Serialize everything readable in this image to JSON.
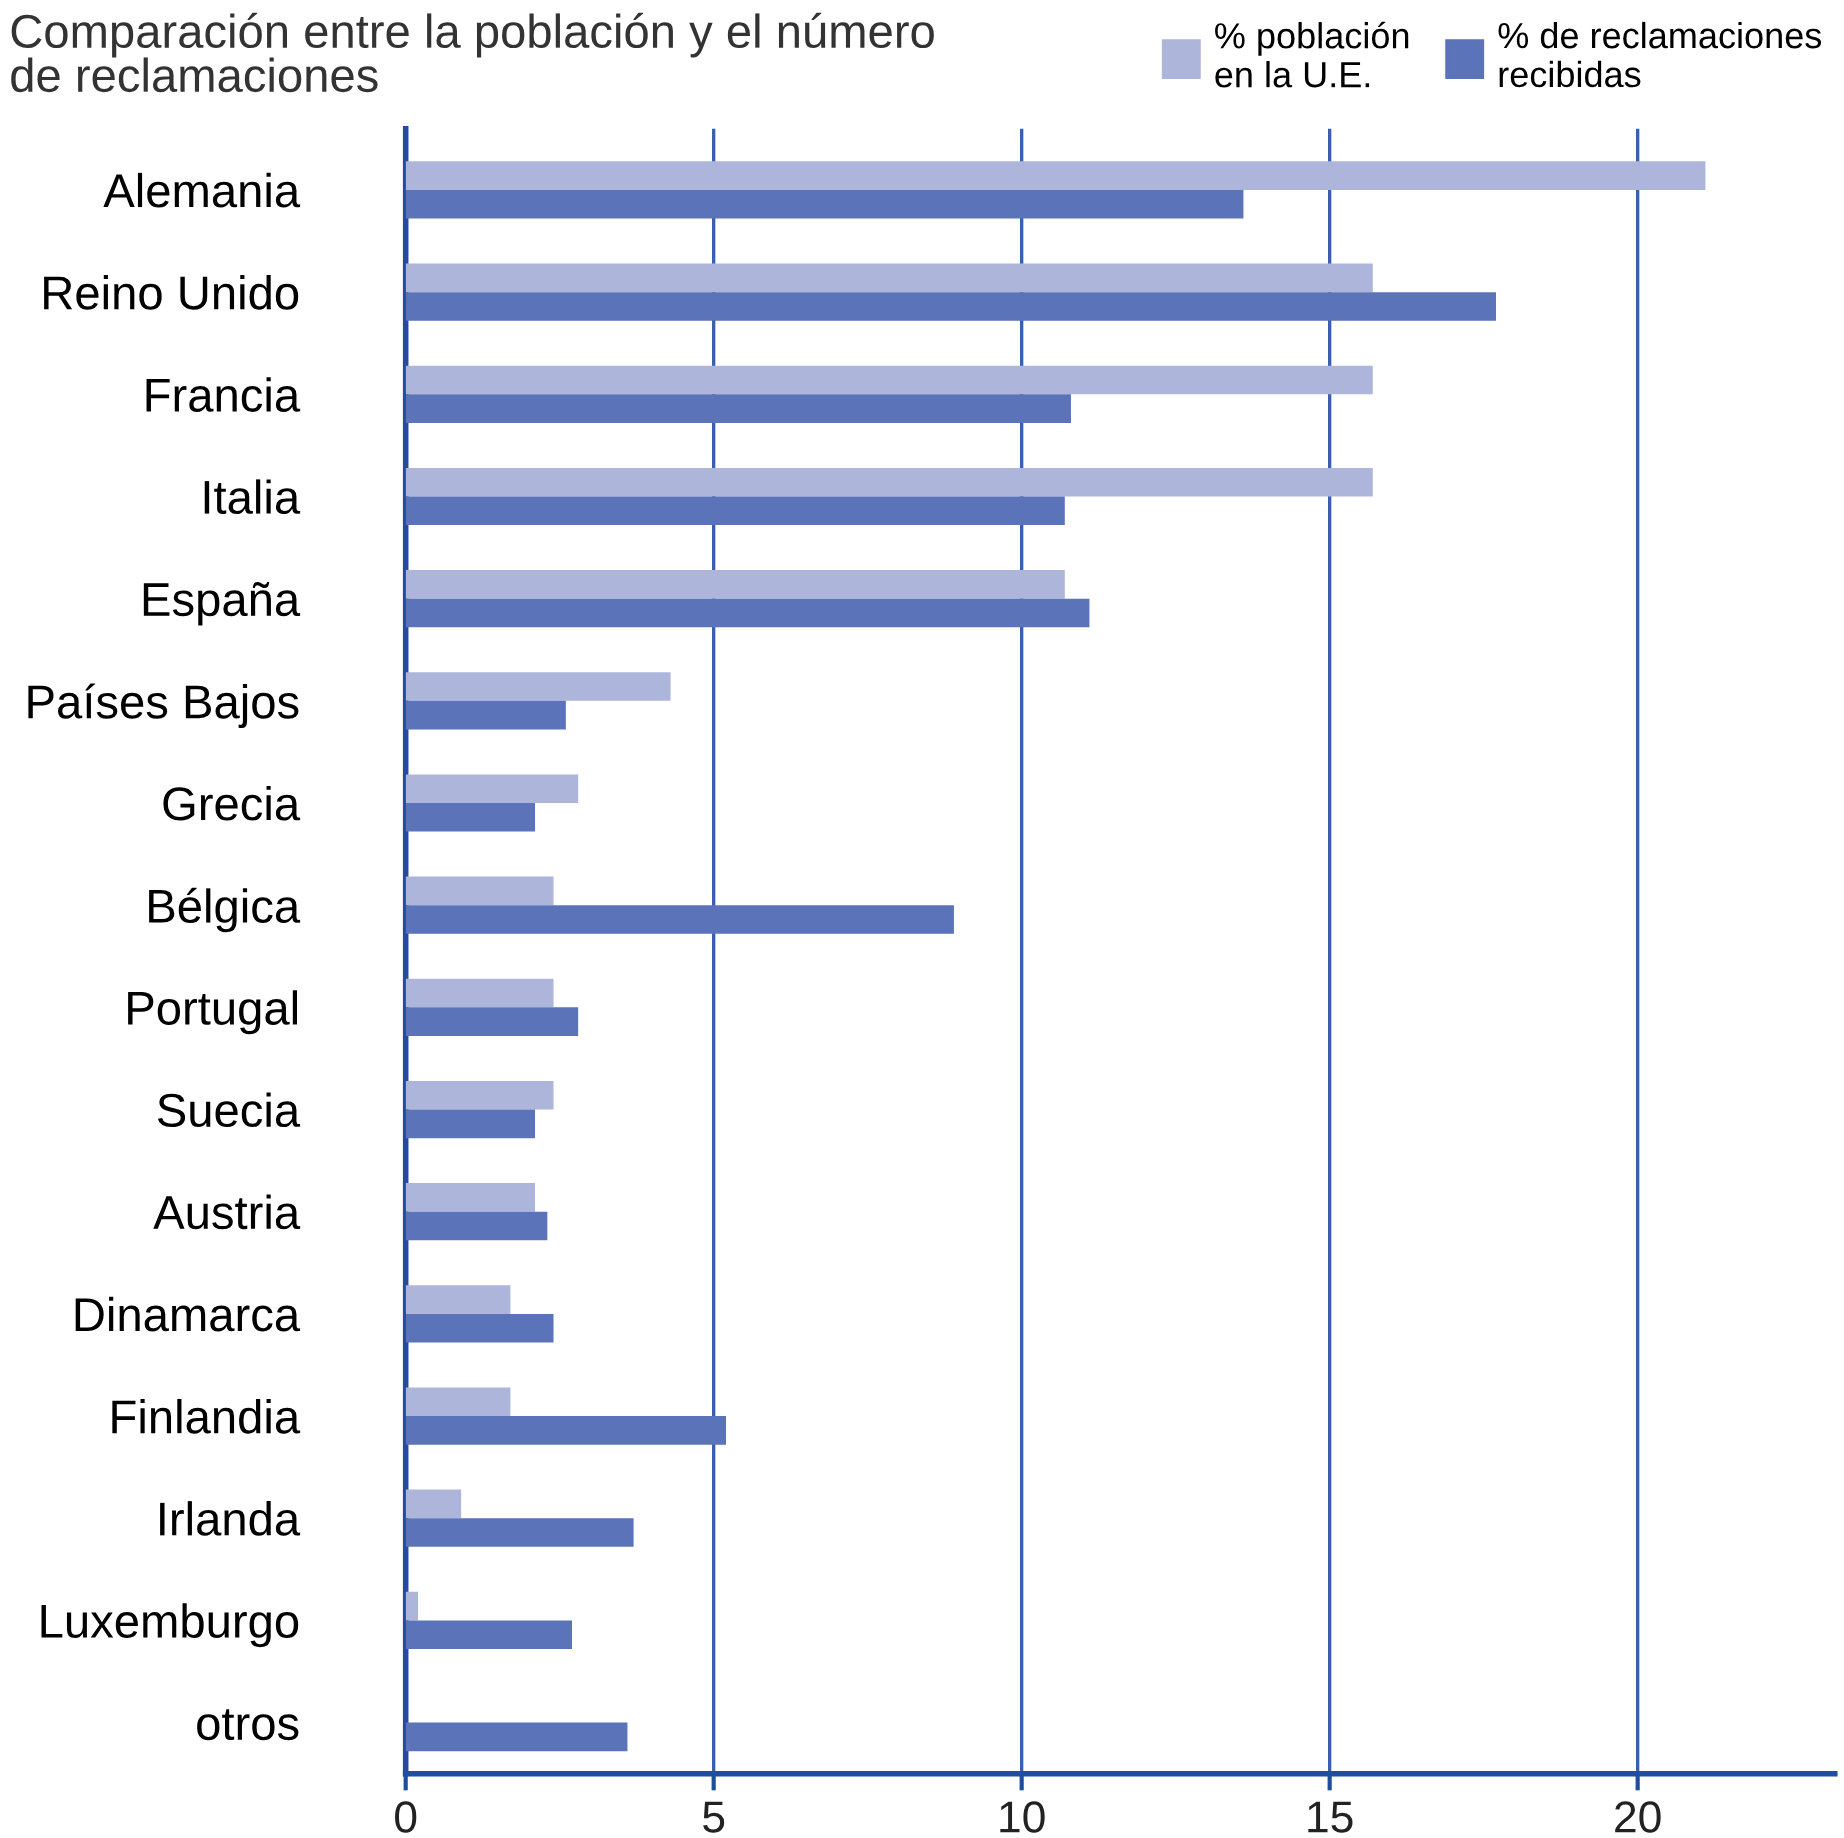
{
  "chart_data": {
    "type": "bar",
    "orientation": "horizontal",
    "title": "Comparación entre la población y el número\nde reclamaciones",
    "categories": [
      "Alemania",
      "Reino Unido",
      "Francia",
      "Italia",
      "España",
      "Países Bajos",
      "Grecia",
      "Bélgica",
      "Portugal",
      "Suecia",
      "Austria",
      "Dinamarca",
      "Finlandia",
      "Irlanda",
      "Luxemburgo",
      "otros"
    ],
    "series": [
      {
        "name": "% población\nen la U.E.",
        "color": "#adb5db",
        "values": [
          21.1,
          15.7,
          15.7,
          15.7,
          10.7,
          4.3,
          2.8,
          2.4,
          2.4,
          2.4,
          2.1,
          1.7,
          1.7,
          0.9,
          0.2,
          null
        ]
      },
      {
        "name": "% de reclamaciones\nrecibidas",
        "color": "#5a73b9",
        "values": [
          13.6,
          17.7,
          10.8,
          10.7,
          11.1,
          2.6,
          2.1,
          8.9,
          2.8,
          2.1,
          2.3,
          2.4,
          5.2,
          3.7,
          2.7,
          3.6
        ]
      }
    ],
    "xlim": [
      0,
      23.2
    ],
    "xticks": [
      0,
      5,
      10,
      15,
      20
    ],
    "grid": "x",
    "legend": "top right"
  }
}
